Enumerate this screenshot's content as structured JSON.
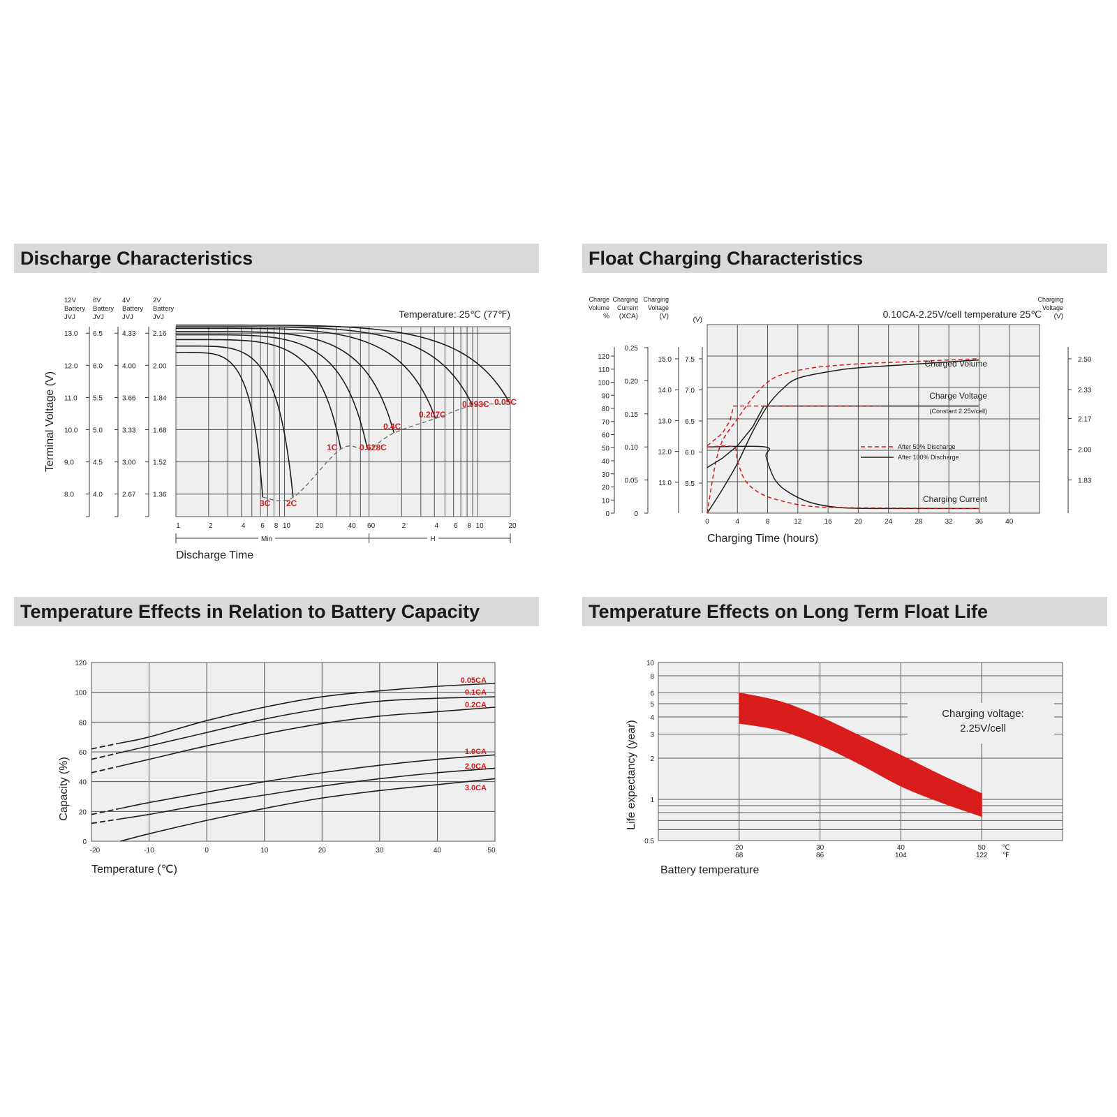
{
  "titles": {
    "discharge": "Discharge Characteristics",
    "float": "Float Charging Characteristics",
    "capacity": "Temperature Effects in Relation to Battery Capacity",
    "life": "Temperature Effects on Long Term Float Life"
  },
  "colors": {
    "header_bg": "#d9d9d9",
    "plot_bg": "#efefef",
    "red": "#d11a1a",
    "band": "#d91c1c"
  },
  "chart_data": [
    {
      "id": "discharge",
      "type": "line",
      "annotation": "Temperature: 25℃ (77℉)",
      "xlabel": "Discharge Time",
      "ylabel": "Terminal Voltage (V)",
      "x_scale": "log",
      "x_ticks_min": [
        "1",
        "2",
        "4",
        "6",
        "8",
        "10",
        "20",
        "40",
        "60"
      ],
      "x_ticks_h": [
        "2",
        "4",
        "6",
        "8",
        "10",
        "20"
      ],
      "x_segment_labels": [
        "Min",
        "H"
      ],
      "y_axes": [
        {
          "header": [
            "12V",
            "Battery",
            "JVJ"
          ],
          "ticks": [
            "13.0",
            "12.0",
            "11.0",
            "10.0",
            "9.0",
            "8.0"
          ]
        },
        {
          "header": [
            "6V",
            "Battery",
            "JVJ"
          ],
          "ticks": [
            "6.5",
            "6.0",
            "5.5",
            "5.0",
            "4.5",
            "4.0"
          ]
        },
        {
          "header": [
            "4V",
            "Battery",
            "JVJ"
          ],
          "ticks": [
            "4.33",
            "4.00",
            "3.66",
            "3.33",
            "3.00",
            "2.67"
          ]
        },
        {
          "header": [
            "2V",
            "Battery",
            "JVJ"
          ],
          "ticks": [
            "2.16",
            "2.00",
            "1.84",
            "1.68",
            "1.52",
            "1.36"
          ]
        }
      ],
      "ylim_12v": [
        7.3,
        13.2
      ],
      "series": [
        {
          "name": "3C",
          "start_v": 12.4,
          "end_v": 7.9,
          "end_minutes": 6.3
        },
        {
          "name": "2C",
          "start_v": 12.6,
          "end_v": 7.9,
          "end_minutes": 12
        },
        {
          "name": "1C",
          "start_v": 12.8,
          "end_v": 9.4,
          "end_minutes": 33
        },
        {
          "name": "0.628C",
          "start_v": 12.95,
          "end_v": 9.4,
          "end_minutes": 58
        },
        {
          "name": "0.4C",
          "start_v": 13.05,
          "end_v": 9.9,
          "end_minutes": 102
        },
        {
          "name": "0.207C",
          "start_v": 13.15,
          "end_v": 10.35,
          "end_minutes": 246
        },
        {
          "name": "0.093C",
          "start_v": 13.2,
          "end_v": 10.75,
          "end_minutes": 540
        },
        {
          "name": "0.05C",
          "start_v": 13.25,
          "end_v": 10.8,
          "end_minutes": 1200
        }
      ]
    },
    {
      "id": "float",
      "type": "line",
      "annotation": "0.10CA-2.25V/cell  temperature 25℃",
      "xlabel": "Charging Time (hours)",
      "x_ticks": [
        "0",
        "4",
        "8",
        "12",
        "16",
        "20",
        "24",
        "28",
        "32",
        "36",
        "40"
      ],
      "xlim": [
        0,
        44
      ],
      "y_axes": [
        {
          "header": [
            "Charge",
            "Volume",
            "%"
          ],
          "ticks": [
            "120",
            "110",
            "100",
            "90",
            "80",
            "70",
            "60",
            "50",
            "40",
            "30",
            "20",
            "10",
            "0"
          ]
        },
        {
          "header": [
            "Charging",
            "Current",
            "(XCA)"
          ],
          "ticks": [
            "0.25",
            "0.20",
            "0.15",
            "0.10",
            "0.05",
            "0"
          ]
        },
        {
          "header": [
            "Charging",
            "Voltage",
            "(V)"
          ],
          "ticks": [
            "15.0",
            "14.0",
            "13.0",
            "12.0",
            "11.0"
          ]
        },
        {
          "header": [
            "(V)"
          ],
          "ticks": [
            "7.5",
            "7.0",
            "6.5",
            "6.0",
            "5.5"
          ]
        },
        {
          "header": [
            "Charging",
            "Voltage",
            "(V)"
          ],
          "ticks": [
            "2.50",
            "2.33",
            "2.17",
            "2.00",
            "1.83"
          ]
        }
      ],
      "curve_labels": {
        "volume": "Charged Volume",
        "voltage": "Charge Voltage",
        "voltage_note": "(Constant 2.25v/cell)",
        "current": "Charging Current"
      },
      "legend": [
        "After   50% Discharge",
        "After 100% Discharge"
      ],
      "series": [
        {
          "curve": "charged_volume",
          "case": "100%",
          "x": [
            0,
            2,
            4,
            6,
            8,
            10,
            12,
            16,
            20,
            28,
            36
          ],
          "y": [
            0,
            18,
            38,
            62,
            82,
            95,
            103,
            108,
            111,
            114,
            117
          ]
        },
        {
          "curve": "charged_volume",
          "case": "50%",
          "x": [
            0,
            1,
            2,
            4,
            6,
            8,
            10,
            14,
            20,
            28,
            36
          ],
          "y": [
            0,
            35,
            55,
            72,
            88,
            100,
            106,
            111,
            114,
            116,
            118
          ]
        },
        {
          "curve": "charge_voltage",
          "case": "100%",
          "x": [
            0,
            2,
            4,
            6,
            7.5,
            36
          ],
          "y": [
            5.75,
            5.9,
            6.1,
            6.4,
            6.74,
            6.74
          ]
        },
        {
          "curve": "charge_voltage",
          "case": "50%",
          "x": [
            0,
            1,
            2,
            3,
            3.5,
            23
          ],
          "y": [
            6.1,
            6.2,
            6.3,
            6.5,
            6.74,
            6.74
          ]
        },
        {
          "curve": "charging_current",
          "case": "100%",
          "x": [
            0,
            7.7,
            7.8,
            9,
            11,
            14,
            18,
            24,
            36
          ],
          "y": [
            0.1,
            0.1,
            0.085,
            0.05,
            0.03,
            0.015,
            0.008,
            0.007,
            0.007
          ]
        },
        {
          "curve": "charging_current",
          "case": "50%",
          "x": [
            0,
            3.5,
            4,
            5,
            7,
            10,
            14,
            20,
            36
          ],
          "y": [
            0.1,
            0.1,
            0.08,
            0.05,
            0.03,
            0.018,
            0.01,
            0.008,
            0.007
          ]
        }
      ]
    },
    {
      "id": "capacity",
      "type": "line",
      "xlabel": "Temperature (℃)",
      "ylabel": "Capacity (%)",
      "x_ticks": [
        "-20",
        "-10",
        "0",
        "10",
        "20",
        "30",
        "40",
        "50"
      ],
      "y_ticks": [
        "120",
        "100",
        "80",
        "60",
        "40",
        "20",
        "0"
      ],
      "xlim": [
        -20,
        50
      ],
      "ylim": [
        0,
        120
      ],
      "series": [
        {
          "name": "0.05CA",
          "x": [
            -20,
            -10,
            0,
            10,
            20,
            30,
            40,
            50
          ],
          "y": [
            62,
            70,
            81,
            90,
            97,
            101,
            104,
            106
          ]
        },
        {
          "name": "0.1CA",
          "x": [
            -20,
            -10,
            0,
            10,
            20,
            30,
            40,
            50
          ],
          "y": [
            55,
            64,
            73,
            82,
            89,
            94,
            96,
            97
          ]
        },
        {
          "name": "0.2CA",
          "x": [
            -20,
            -10,
            0,
            10,
            20,
            30,
            40,
            50
          ],
          "y": [
            46,
            55,
            64,
            72,
            79,
            84,
            87,
            90
          ]
        },
        {
          "name": "1.0CA",
          "x": [
            -20,
            -10,
            0,
            10,
            20,
            30,
            40,
            50
          ],
          "y": [
            18,
            26,
            33,
            40,
            46,
            51,
            55,
            58
          ]
        },
        {
          "name": "2.0CA",
          "x": [
            -20,
            -10,
            0,
            10,
            20,
            30,
            40,
            50
          ],
          "y": [
            12,
            18,
            25,
            31,
            37,
            42,
            46,
            49
          ]
        },
        {
          "name": "3.0CA",
          "x": [
            -15,
            -10,
            0,
            10,
            20,
            30,
            40,
            50
          ],
          "y": [
            0,
            5,
            14,
            22,
            29,
            34,
            38,
            42
          ]
        }
      ]
    },
    {
      "id": "life",
      "type": "area",
      "xlabel": "Battery temperature",
      "ylabel": "Life expectancy (year)",
      "y_scale": "log",
      "x_ticks_c": [
        "20",
        "30",
        "40",
        "50"
      ],
      "x_ticks_f": [
        "68",
        "86",
        "104",
        "122"
      ],
      "unit_c": "℃",
      "unit_f": "℉",
      "y_ticks": [
        "10",
        "8",
        "6",
        "5",
        "4",
        "3",
        "2",
        "1",
        "0.5"
      ],
      "xlim_c": [
        10,
        60
      ],
      "ylim": [
        0.5,
        10
      ],
      "note": [
        "Charging voltage:",
        "2.25V/cell"
      ],
      "band": {
        "x": [
          20,
          25,
          30,
          35,
          40,
          45,
          50
        ],
        "upper": [
          6.0,
          5.2,
          4.0,
          2.9,
          2.1,
          1.5,
          1.1
        ],
        "lower": [
          3.6,
          3.2,
          2.5,
          1.8,
          1.25,
          0.95,
          0.75
        ]
      }
    }
  ]
}
